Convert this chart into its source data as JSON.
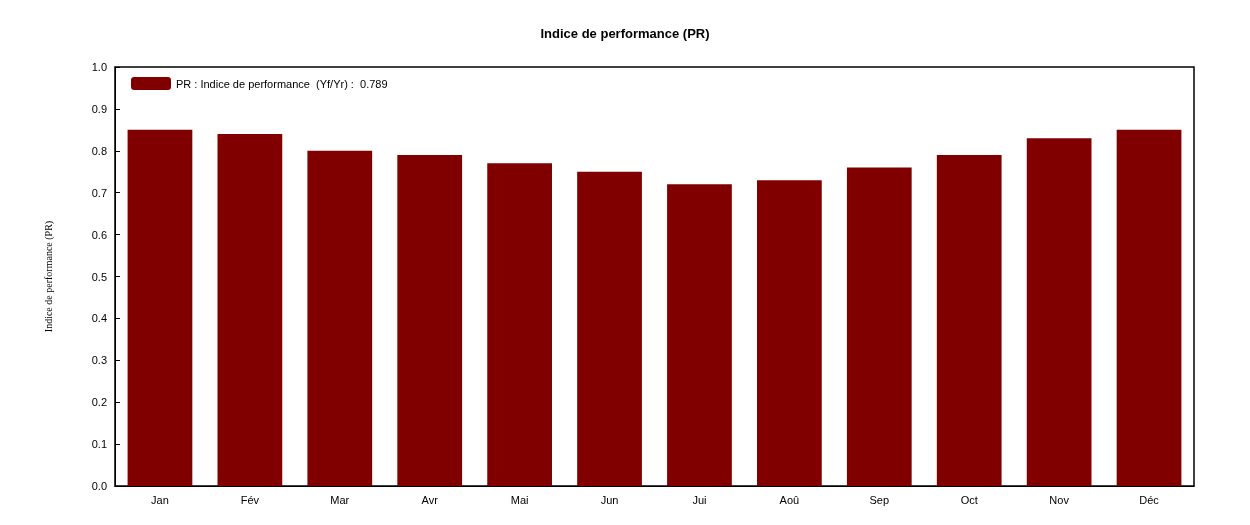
{
  "chart_data": {
    "type": "bar",
    "title": "Indice de performance (PR)",
    "ylabel": "Indice de performance (PR)",
    "categories": [
      "Jan",
      "Fév",
      "Mar",
      "Avr",
      "Mai",
      "Jun",
      "Jui",
      "Aoû",
      "Sep",
      "Oct",
      "Nov",
      "Déc"
    ],
    "series": [
      {
        "name": "PR : Indice de performance  (Yf/Yr) :  0.789",
        "color": "#800000",
        "values": [
          0.85,
          0.84,
          0.8,
          0.79,
          0.77,
          0.75,
          0.72,
          0.73,
          0.76,
          0.79,
          0.83,
          0.85
        ]
      }
    ],
    "ylim": [
      0,
      1
    ],
    "yticks": [
      {
        "value": 0,
        "label": "0.0"
      },
      0.1,
      0.2,
      0.3,
      0.4,
      0.5,
      0.6,
      0.7,
      0.8,
      0.9,
      {
        "value": 1,
        "label": "1.0"
      }
    ],
    "grid": false,
    "legend": "top left"
  }
}
